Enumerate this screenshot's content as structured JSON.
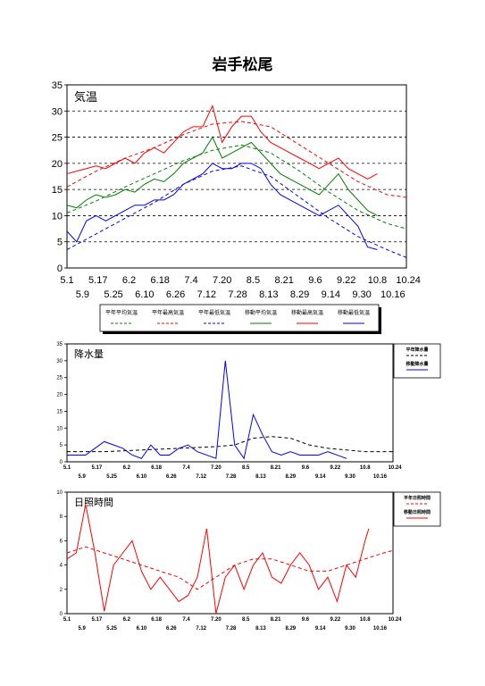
{
  "page_title": "岩手松尾",
  "date_ticks_top": [
    "5.1",
    "6.2",
    "7.4",
    "8.5",
    "9.6",
    "10.8"
  ],
  "date_ticks_alt": [
    "5.17",
    "6.18",
    "7.20",
    "8.21",
    "9.22",
    "10.24"
  ],
  "date_ticks_bottom": [
    "5.9",
    "5.25",
    "6.10",
    "6.26",
    "7.12",
    "7.28",
    "8.13",
    "8.29",
    "9.14",
    "9.30",
    "10.16"
  ],
  "chart_data": [
    {
      "type": "line",
      "title": "気温",
      "ylim": [
        0,
        35
      ],
      "yticks": [
        0,
        5,
        10,
        15,
        20,
        25,
        30,
        35
      ],
      "grid": "dashed horizontal at 5-unit intervals (5–30)",
      "legend": [
        "平年平均気温",
        "平年最高気温",
        "平年最低気温",
        "移動平均気温",
        "移動最高気温",
        "移動最低気温"
      ],
      "series": [
        {
          "name": "平年平均気温",
          "color": "#008000",
          "dashed": true,
          "x": [
            0,
            15,
            30,
            45,
            60,
            75,
            90,
            105,
            120,
            135,
            150,
            165,
            175
          ],
          "y": [
            10.5,
            12.8,
            15.5,
            18.0,
            20.5,
            22.5,
            23.5,
            22.0,
            18.5,
            14.5,
            11.0,
            8.5,
            7.5
          ]
        },
        {
          "name": "平年最高気温",
          "color": "#ff0000",
          "dashed": true,
          "x": [
            0,
            15,
            30,
            45,
            60,
            75,
            90,
            105,
            120,
            135,
            150,
            165,
            175
          ],
          "y": [
            15.5,
            18.5,
            21.0,
            23.0,
            25.5,
            27.5,
            28.0,
            27.0,
            23.5,
            20.0,
            16.5,
            14.0,
            13.5
          ]
        },
        {
          "name": "平年最低気温",
          "color": "#0000ff",
          "dashed": true,
          "x": [
            0,
            15,
            30,
            45,
            60,
            75,
            90,
            105,
            120,
            135,
            150,
            165,
            175
          ],
          "y": [
            3.5,
            6.5,
            9.5,
            12.5,
            16.0,
            18.5,
            19.5,
            17.5,
            13.5,
            9.5,
            6.0,
            3.5,
            2.0
          ]
        },
        {
          "name": "移動平均気温",
          "color": "#008000",
          "dashed": false,
          "x": [
            0,
            5,
            10,
            15,
            20,
            25,
            30,
            35,
            40,
            45,
            50,
            55,
            60,
            65,
            70,
            75,
            80,
            85,
            90,
            95,
            100,
            105,
            110,
            115,
            120,
            125,
            130,
            135,
            140,
            145,
            150,
            155,
            160
          ],
          "y": [
            12,
            11.5,
            13,
            14,
            13.5,
            14,
            15,
            14.5,
            16,
            17,
            16.5,
            18,
            20,
            21,
            22,
            25,
            21,
            22,
            23,
            24,
            22,
            20,
            18,
            17,
            16,
            15,
            14,
            16,
            18,
            15,
            13,
            11,
            10
          ]
        },
        {
          "name": "移動最高気温",
          "color": "#ff0000",
          "dashed": false,
          "x": [
            0,
            5,
            10,
            15,
            20,
            25,
            30,
            35,
            40,
            45,
            50,
            55,
            60,
            65,
            70,
            75,
            80,
            85,
            90,
            95,
            100,
            105,
            110,
            115,
            120,
            125,
            130,
            135,
            140,
            145,
            150,
            155,
            160
          ],
          "y": [
            18,
            18.5,
            19,
            19.5,
            19,
            20,
            21,
            20,
            22,
            23,
            22,
            24,
            26,
            27,
            27,
            31,
            24,
            27,
            29,
            29,
            26,
            24,
            23,
            22,
            21,
            20,
            19,
            20,
            21,
            19,
            18,
            17,
            18
          ]
        },
        {
          "name": "移動最低気温",
          "color": "#0000ff",
          "dashed": false,
          "x": [
            0,
            5,
            10,
            15,
            20,
            25,
            30,
            35,
            40,
            45,
            50,
            55,
            60,
            65,
            70,
            75,
            80,
            85,
            90,
            95,
            100,
            105,
            110,
            115,
            120,
            125,
            130,
            135,
            140,
            145,
            150,
            155,
            160
          ],
          "y": [
            7,
            5,
            9,
            10,
            9,
            10,
            11,
            12,
            12,
            13,
            13,
            14,
            16,
            17,
            18,
            20,
            19,
            19,
            20,
            20,
            19,
            16,
            14,
            13,
            12,
            11,
            10,
            11,
            12,
            10,
            8,
            4,
            3.5
          ]
        }
      ]
    },
    {
      "type": "line",
      "title": "降水量",
      "ylim": [
        0,
        35
      ],
      "yticks": [
        0,
        5,
        10,
        15,
        20,
        25,
        30,
        35
      ],
      "legend": [
        "平年降水量",
        "移動降水量"
      ],
      "series": [
        {
          "name": "平年降水量",
          "color": "#000000",
          "dashed": true,
          "x": [
            0,
            20,
            40,
            60,
            80,
            90,
            95,
            100,
            110,
            120,
            130,
            140,
            150,
            160,
            170,
            175
          ],
          "y": [
            3,
            3,
            3.5,
            4,
            4.5,
            5,
            6,
            7,
            7.5,
            7,
            5,
            4,
            3.5,
            3,
            3,
            3
          ]
        },
        {
          "name": "移動降水量",
          "color": "#0000ff",
          "dashed": false,
          "x": [
            0,
            10,
            15,
            20,
            25,
            30,
            35,
            40,
            45,
            50,
            55,
            60,
            65,
            70,
            75,
            80,
            85,
            90,
            95,
            100,
            105,
            110,
            115,
            120,
            125,
            130,
            135,
            140,
            145,
            150
          ],
          "y": [
            2,
            2,
            4,
            6,
            5,
            4,
            2,
            1,
            5,
            2,
            2,
            4,
            5,
            3,
            2,
            1,
            30,
            5,
            1,
            14,
            8,
            3,
            2,
            3,
            2,
            2,
            2,
            3,
            2,
            1
          ]
        }
      ]
    },
    {
      "type": "line",
      "title": "日照時間",
      "ylim": [
        0,
        10
      ],
      "yticks": [
        0,
        2,
        4,
        6,
        8,
        10
      ],
      "legend": [
        "平年日照時間",
        "移動日照時間"
      ],
      "series": [
        {
          "name": "平年日照時間",
          "color": "#ff0000",
          "dashed": true,
          "x": [
            0,
            10,
            20,
            30,
            40,
            50,
            60,
            70,
            80,
            90,
            100,
            110,
            120,
            130,
            140,
            150,
            160,
            170,
            175
          ],
          "y": [
            5.0,
            5.5,
            5.0,
            4.5,
            4.0,
            3.5,
            3.0,
            2.0,
            3.0,
            4.0,
            4.5,
            4.5,
            4.0,
            3.5,
            3.5,
            4.0,
            4.5,
            5.0,
            5.2
          ]
        },
        {
          "name": "移動日照時間",
          "color": "#ff0000",
          "dashed": false,
          "x": [
            0,
            5,
            10,
            15,
            20,
            25,
            30,
            35,
            40,
            45,
            50,
            55,
            60,
            65,
            70,
            75,
            80,
            85,
            90,
            95,
            100,
            105,
            110,
            115,
            120,
            125,
            130,
            135,
            140,
            145,
            150,
            155,
            160,
            162
          ],
          "y": [
            4.5,
            5,
            9,
            5,
            0.2,
            4,
            5,
            6,
            3.5,
            2,
            3,
            2,
            1,
            1.5,
            3,
            7,
            0,
            3,
            4,
            2,
            4,
            5,
            3,
            2.5,
            4,
            5,
            4,
            2,
            3,
            1,
            4,
            3,
            6,
            7
          ]
        }
      ]
    }
  ]
}
